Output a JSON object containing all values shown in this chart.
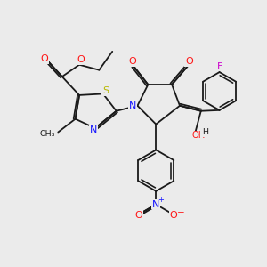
{
  "bg_color": "#ebebeb",
  "bond_color": "#1a1a1a",
  "atom_colors": {
    "N": "#1414ff",
    "O": "#ff1414",
    "S": "#b8b800",
    "F": "#cc00cc",
    "C": "#1a1a1a",
    "H": "#1a1a1a"
  },
  "lw": 1.3,
  "fs": 8.0
}
